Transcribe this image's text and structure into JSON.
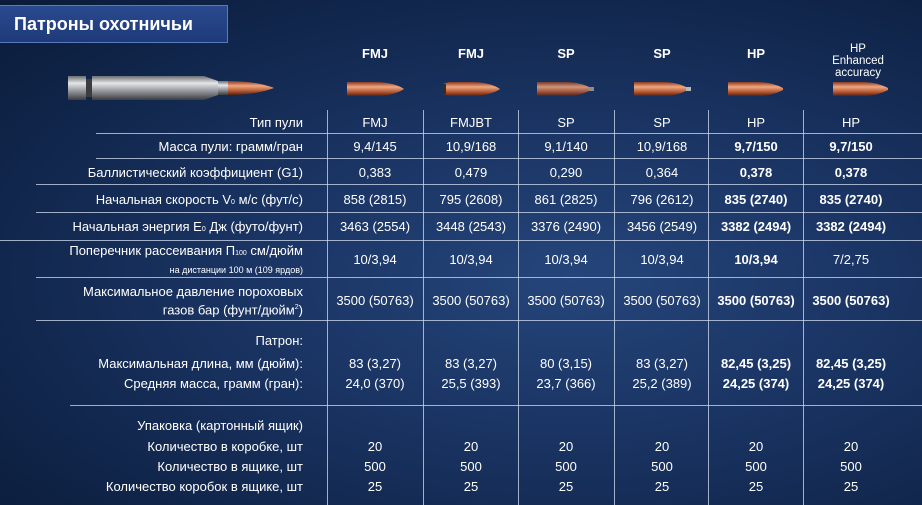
{
  "title": "Патроны охотничьи",
  "columns": [
    {
      "head": "FMJ",
      "head2": "",
      "head3": ""
    },
    {
      "head": "FMJ",
      "head2": "",
      "head3": ""
    },
    {
      "head": "SP",
      "head2": "",
      "head3": ""
    },
    {
      "head": "SP",
      "head2": "",
      "head3": ""
    },
    {
      "head": "HP",
      "head2": "",
      "head3": ""
    },
    {
      "head": "HP",
      "head2": "Enhanced",
      "head3": "accuracy"
    }
  ],
  "rows": {
    "bullet_type": {
      "label": "Тип пули",
      "values": [
        "FMJ",
        "FMJBT",
        "SP",
        "SP",
        "HP",
        "HP"
      ]
    },
    "bullet_mass": {
      "label": "Масса пули: грамм/гран",
      "values": [
        "9,4/145",
        "10,9/168",
        "9,1/140",
        "10,9/168",
        "9,7/150",
        "9,7/150"
      ]
    },
    "ballistic": {
      "label": "Баллистический коэффициент (G1)",
      "values": [
        "0,383",
        "0,479",
        "0,290",
        "0,364",
        "0,378",
        "0,378"
      ]
    },
    "velocity": {
      "label_a": "Начальная скорость V",
      "label_sub": "0",
      "label_b": " м/с (фут/с)",
      "values": [
        "858 (2815)",
        "795 (2608)",
        "861 (2825)",
        "796 (2612)",
        "835 (2740)",
        "835 (2740)"
      ]
    },
    "energy": {
      "label_a": "Начальная энергия E",
      "label_sub": "0",
      "label_b": " Дж (футо/фунт)",
      "values": [
        "3463 (2554)",
        "3448 (2543)",
        "3376 (2490)",
        "3456 (2549)",
        "3382 (2494)",
        "3382 (2494)"
      ]
    },
    "dispersion": {
      "label_a": "Поперечник рассеивания П",
      "label_sub": "100",
      "label_b": " см/дюйм",
      "label_note": "на дистанции 100 м (109 ярдов)",
      "values": [
        "10/3,94",
        "10/3,94",
        "10/3,94",
        "10/3,94",
        "10/3,94",
        "7/2,75"
      ]
    },
    "pressure": {
      "label_1": "Максимальное давление пороховых",
      "label_2a": "газов бар (фунт/дюйм",
      "label_sup": "2",
      "label_2b": ")",
      "values": [
        "3500 (50763)",
        "3500 (50763)",
        "3500 (50763)",
        "3500 (50763)",
        "3500 (50763)",
        "3500 (50763)"
      ]
    },
    "cartridge_head": {
      "label": "Патрон:"
    },
    "max_length": {
      "label": "Максимальная длина, мм (дюйм):",
      "values": [
        "83 (3,27)",
        "83 (3,27)",
        "80 (3,15)",
        "83 (3,27)",
        "82,45 (3,25)",
        "82,45 (3,25)"
      ]
    },
    "avg_mass": {
      "label": "Средняя масса, грамм (гран):",
      "values": [
        "24,0 (370)",
        "25,5 (393)",
        "23,7 (366)",
        "25,2 (389)",
        "24,25 (374)",
        "24,25 (374)"
      ]
    },
    "packaging": {
      "label": "Упаковка (картонный ящик)"
    },
    "per_box": {
      "label": "Количество в коробке, шт",
      "values": [
        "20",
        "20",
        "20",
        "20",
        "20",
        "20"
      ]
    },
    "per_case": {
      "label": "Количество в ящике, шт",
      "values": [
        "500",
        "500",
        "500",
        "500",
        "500",
        "500"
      ]
    },
    "boxes_per_case": {
      "label": "Количество коробок в ящике, шт",
      "values": [
        "25",
        "25",
        "25",
        "25",
        "25",
        "25"
      ]
    }
  }
}
